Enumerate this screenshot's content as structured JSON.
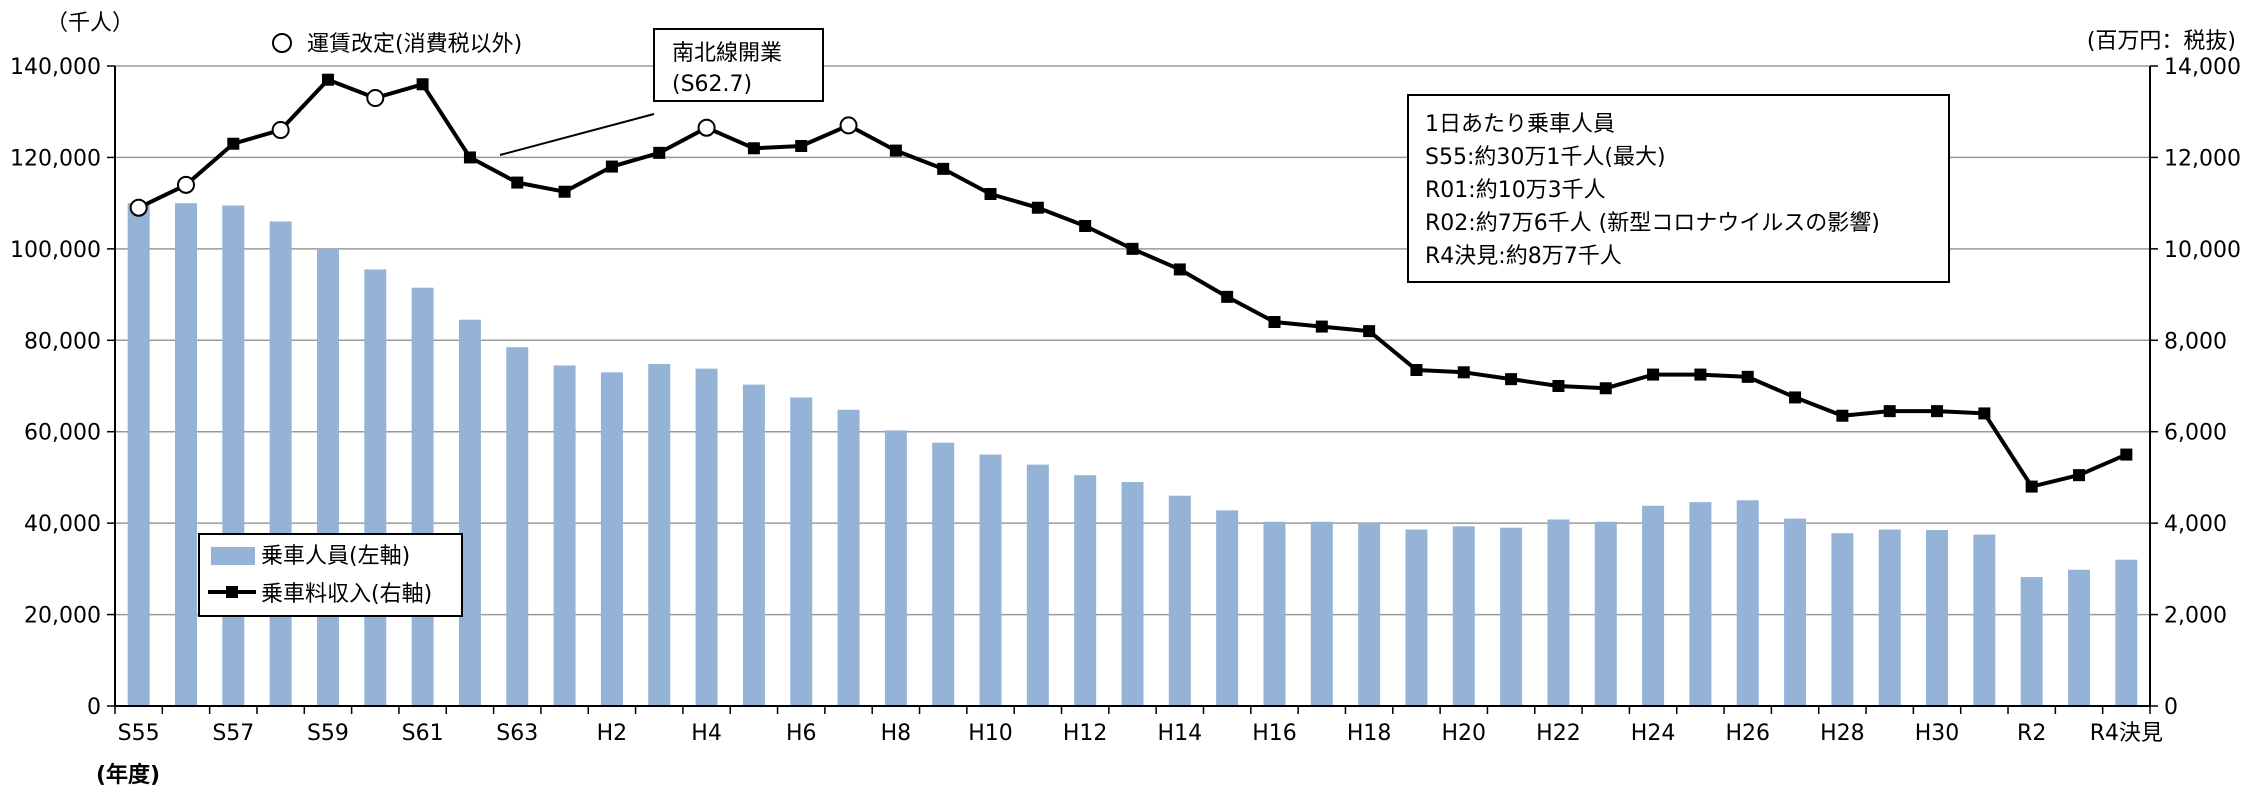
{
  "chart_data": {
    "type": "bar",
    "left_axis_unit": "（千人）",
    "right_axis_unit": "(百万円：税抜)",
    "x_axis_caption": "(年度)",
    "revision_legend": "運賃改定(消費税以外)",
    "opening_callout": {
      "title": "南北線開業",
      "date": "(S62.7)"
    },
    "info_box": [
      "1日あたり乗車人員",
      "S55:約30万1千人(最大)",
      "R01:約10万3千人",
      "R02:約7万6千人 (新型コロナウイルスの影響)",
      "R4決見:約8万7千人"
    ],
    "y_left": {
      "min": 0,
      "max": 140000,
      "ticks": [
        "0",
        "20,000",
        "40,000",
        "60,000",
        "80,000",
        "100,000",
        "120,000",
        "140,000"
      ]
    },
    "y_right": {
      "min": 0,
      "max": 14000,
      "ticks": [
        "0",
        "2,000",
        "4,000",
        "6,000",
        "8,000",
        "10,000",
        "12,000",
        "14,000"
      ]
    },
    "categories": [
      "S55",
      "S56",
      "S57",
      "S58",
      "S59",
      "S60",
      "S61",
      "S62",
      "S63",
      "H1",
      "H2",
      "H3",
      "H4",
      "H5",
      "H6",
      "H7",
      "H8",
      "H9",
      "H10",
      "H11",
      "H12",
      "H13",
      "H14",
      "H15",
      "H16",
      "H17",
      "H18",
      "H19",
      "H20",
      "H21",
      "H22",
      "H23",
      "H24",
      "H25",
      "H26",
      "H27",
      "H28",
      "H29",
      "H30",
      "R1",
      "R2",
      "R3",
      "R4決見"
    ],
    "x_tick_labels": [
      "S55",
      "",
      "S57",
      "",
      "S59",
      "",
      "S61",
      "",
      "S63",
      "",
      "H2",
      "",
      "H4",
      "",
      "H6",
      "",
      "H8",
      "",
      "H10",
      "",
      "H12",
      "",
      "H14",
      "",
      "H16",
      "",
      "H18",
      "",
      "H20",
      "",
      "H22",
      "",
      "H24",
      "",
      "H26",
      "",
      "H28",
      "",
      "H30",
      "",
      "R2",
      "",
      "R4決見"
    ],
    "series": [
      {
        "name": "乗車人員(左軸)",
        "type": "bar",
        "axis": "left",
        "color": "#95b3d7",
        "values": [
          110000,
          110000,
          109500,
          106000,
          100000,
          95500,
          91500,
          84500,
          78500,
          74500,
          73000,
          74800,
          73800,
          70300,
          67500,
          64800,
          60300,
          57600,
          55000,
          52800,
          50500,
          49000,
          46000,
          42800,
          40300,
          40300,
          40000,
          38600,
          39300,
          39000,
          40800,
          40300,
          43800,
          44600,
          45000,
          41000,
          37800,
          38600,
          38500,
          37500,
          28200,
          29800,
          32000
        ]
      },
      {
        "name": "乗車料収入(右軸)",
        "type": "line",
        "axis": "right",
        "color": "#000000",
        "values": [
          10900,
          11400,
          12300,
          12600,
          13700,
          13300,
          13600,
          12000,
          11450,
          11250,
          11800,
          12100,
          12650,
          12200,
          12250,
          12700,
          12150,
          11750,
          11200,
          10900,
          10500,
          10000,
          9550,
          8950,
          8400,
          8300,
          8200,
          7350,
          7300,
          7150,
          7000,
          6950,
          7250,
          7250,
          7200,
          6750,
          6350,
          6450,
          6450,
          6400,
          4800,
          5050,
          5500
        ],
        "revision_years": [
          "S55",
          "S56",
          "S58",
          "S60",
          "H4",
          "H7"
        ]
      }
    ]
  }
}
